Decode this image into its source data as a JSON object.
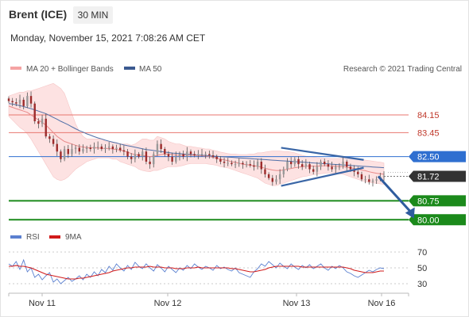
{
  "header": {
    "title": "Brent (ICE)",
    "timeframe": "30 MIN",
    "datetime": "Monday, November 15, 2021 7:08:26 AM CET"
  },
  "legend": {
    "ma20_label": "MA 20 + Bollinger Bands",
    "ma50_label": "MA 50",
    "credit": "Research © 2021 Trading Central",
    "rsi_label": "RSI",
    "rsi9ma_label": "9MA"
  },
  "colors": {
    "up_candle": "#999999",
    "down_candle": "#9c2b2b",
    "ma20": "#e88a8a",
    "bollinger_fill": "#fde2e2",
    "ma50": "#4f6fa8",
    "resistance": "#e8766f",
    "pivot": "#2f6fd0",
    "support": "#1b8a1b",
    "current": "#333333",
    "trendline": "#3a66a6",
    "rsi": "#5b80d0",
    "rsi9ma": "#d11b1b"
  },
  "chart_data": [
    {
      "type": "candlestick",
      "title": "",
      "x_labels": [
        "Nov 11",
        "Nov 12",
        "Nov 13",
        "Nov 16"
      ],
      "ylim": [
        79.6,
        85.5
      ],
      "levels": [
        {
          "value": 84.15,
          "label": "84.15",
          "kind": "resistance"
        },
        {
          "value": 83.45,
          "label": "83.45",
          "kind": "resistance"
        },
        {
          "value": 82.5,
          "label": "82.50",
          "kind": "pivot"
        },
        {
          "value": 81.72,
          "label": "81.72",
          "kind": "current"
        },
        {
          "value": 80.75,
          "label": "80.75",
          "kind": "support"
        },
        {
          "value": 80.0,
          "label": "80.00",
          "kind": "support"
        }
      ],
      "triangle_pattern": {
        "upper": [
          [
            0.726,
            82.85
          ],
          [
            0.946,
            82.37
          ]
        ],
        "lower": [
          [
            0.726,
            81.34
          ],
          [
            0.946,
            82.06
          ]
        ]
      },
      "forecast_arrow": {
        "from": [
          0.985,
          81.72
        ],
        "to": [
          1.08,
          80.05
        ]
      },
      "price_series": [
        84.7,
        84.65,
        84.6,
        84.75,
        84.5,
        84.9,
        84.6,
        83.9,
        83.8,
        84.0,
        83.3,
        83.2,
        83.0,
        82.7,
        82.4,
        82.8,
        82.6,
        82.8,
        82.85,
        82.7,
        82.8,
        82.85,
        82.8,
        82.9,
        82.9,
        82.8,
        82.85,
        82.9,
        82.8,
        82.85,
        82.75,
        82.7,
        82.5,
        82.4,
        82.6,
        82.5,
        82.7,
        82.3,
        82.2,
        82.6,
        83.0,
        82.8,
        82.6,
        82.5,
        82.3,
        82.5,
        82.6,
        82.5,
        82.7,
        82.6,
        82.55,
        82.6,
        82.6,
        82.6,
        82.55,
        82.5,
        82.4,
        82.3,
        82.25,
        82.25,
        82.2,
        82.2,
        82.25,
        82.2,
        82.2,
        82.15,
        82.1,
        82.3,
        82.0,
        81.8,
        81.65,
        81.5,
        81.6,
        81.8,
        82.0,
        82.3,
        82.2,
        82.4,
        82.2,
        82.1,
        82.2,
        82.0,
        81.9,
        82.1,
        82.3,
        82.2,
        82.1,
        82.0,
        82.1,
        82.1,
        82.3,
        82.1,
        82.0,
        81.9,
        81.8,
        81.6,
        81.6,
        81.5,
        81.55,
        81.6,
        81.7,
        81.72
      ],
      "ma20": [
        84.5,
        84.45,
        84.4,
        84.35,
        84.3,
        84.25,
        84.15,
        84.05,
        83.95,
        83.85,
        83.75,
        83.6,
        83.45,
        83.3,
        83.2,
        83.1,
        83.05,
        83.0,
        82.95,
        82.9,
        82.88,
        82.85,
        82.85,
        82.85,
        82.84,
        82.83,
        82.82,
        82.82,
        82.8,
        82.78,
        82.76,
        82.72,
        82.68,
        82.62,
        82.58,
        82.56,
        82.55,
        82.52,
        82.5,
        82.52,
        82.55,
        82.58,
        82.6,
        82.6,
        82.58,
        82.56,
        82.55,
        82.55,
        82.56,
        82.56,
        82.55,
        82.54,
        82.53,
        82.52,
        82.5,
        82.47,
        82.44,
        82.4,
        82.37,
        82.34,
        82.3,
        82.27,
        82.24,
        82.2,
        82.18,
        82.16,
        82.14,
        82.12,
        82.08,
        82.04,
        82.0,
        81.97,
        81.95,
        81.95,
        81.97,
        82.0,
        82.03,
        82.06,
        82.08,
        82.1,
        82.12,
        82.13,
        82.12,
        82.12,
        82.13,
        82.14,
        82.14,
        82.13,
        82.12,
        82.11,
        82.1,
        82.08,
        82.06,
        82.03,
        82.0,
        81.97,
        81.94,
        81.9,
        81.87,
        81.84,
        81.82,
        81.8
      ],
      "bb_upper": [
        84.9,
        84.95,
        85.0,
        85.05,
        85.05,
        85.1,
        85.1,
        85.15,
        85.2,
        85.25,
        85.3,
        85.35,
        85.4,
        85.3,
        85.2,
        85.0,
        84.6,
        84.2,
        83.8,
        83.5,
        83.3,
        83.2,
        83.2,
        83.2,
        83.2,
        83.2,
        83.1,
        83.1,
        83.05,
        83.05,
        83.0,
        83.0,
        83.0,
        82.95,
        83.0,
        83.1,
        83.2,
        83.2,
        83.15,
        83.15,
        83.3,
        83.25,
        83.2,
        83.1,
        83.05,
        83.0,
        83.0,
        82.95,
        82.9,
        82.9,
        82.88,
        82.85,
        82.83,
        82.8,
        82.8,
        82.75,
        82.72,
        82.68,
        82.65,
        82.62,
        82.6,
        82.6,
        82.58,
        82.58,
        82.58,
        82.6,
        82.6,
        82.65,
        82.65,
        82.68,
        82.7,
        82.72,
        82.72,
        82.72,
        82.7,
        82.7,
        82.68,
        82.65,
        82.6,
        82.55,
        82.52,
        82.5,
        82.48,
        82.46,
        82.45,
        82.44,
        82.43,
        82.42,
        82.42,
        82.42,
        82.45,
        82.45,
        82.45,
        82.43,
        82.4,
        82.38,
        82.36,
        82.34,
        82.32,
        82.3,
        82.28,
        82.25
      ],
      "bb_lower": [
        84.1,
        83.95,
        83.8,
        83.65,
        83.55,
        83.4,
        83.2,
        82.95,
        82.7,
        82.45,
        82.2,
        81.95,
        81.7,
        81.6,
        81.55,
        81.6,
        81.7,
        81.85,
        82.0,
        82.1,
        82.2,
        82.3,
        82.35,
        82.4,
        82.45,
        82.45,
        82.45,
        82.45,
        82.4,
        82.4,
        82.3,
        82.25,
        82.2,
        82.15,
        82.1,
        82.0,
        81.95,
        81.92,
        81.9,
        81.95,
        81.95,
        82.0,
        82.05,
        82.1,
        82.1,
        82.1,
        82.12,
        82.15,
        82.2,
        82.22,
        82.22,
        82.22,
        82.22,
        82.22,
        82.2,
        82.18,
        82.15,
        82.1,
        82.08,
        82.05,
        82.0,
        81.95,
        81.9,
        81.85,
        81.8,
        81.75,
        81.7,
        81.65,
        81.55,
        81.45,
        81.4,
        81.35,
        81.35,
        81.4,
        81.45,
        81.5,
        81.55,
        81.6,
        81.65,
        81.7,
        81.72,
        81.75,
        81.78,
        81.8,
        81.82,
        81.84,
        81.85,
        81.85,
        81.84,
        81.82,
        81.8,
        81.75,
        81.7,
        81.65,
        81.6,
        81.55,
        81.5,
        81.48,
        81.46,
        81.44,
        81.42,
        81.4
      ],
      "ma50": [
        84.6,
        84.58,
        84.55,
        84.52,
        84.48,
        84.44,
        84.4,
        84.35,
        84.3,
        84.25,
        84.2,
        84.13,
        84.05,
        83.98,
        83.9,
        83.83,
        83.76,
        83.68,
        83.6,
        83.53,
        83.47,
        83.4,
        83.35,
        83.29,
        83.24,
        83.2,
        83.15,
        83.11,
        83.07,
        83.04,
        83.0,
        82.96,
        82.93,
        82.9,
        82.87,
        82.84,
        82.81,
        82.78,
        82.76,
        82.74,
        82.72,
        82.7,
        82.68,
        82.66,
        82.64,
        82.63,
        82.62,
        82.6,
        82.59,
        82.58,
        82.57,
        82.56,
        82.55,
        82.54,
        82.53,
        82.52,
        82.51,
        82.5,
        82.49,
        82.48,
        82.47,
        82.46,
        82.45,
        82.44,
        82.43,
        82.42,
        82.41,
        82.4,
        82.39,
        82.38,
        82.37,
        82.36,
        82.35,
        82.34,
        82.33,
        82.32,
        82.31,
        82.3,
        82.29,
        82.28,
        82.27,
        82.26,
        82.25,
        82.24,
        82.23,
        82.22,
        82.21,
        82.2,
        82.19,
        82.18,
        82.17,
        82.16,
        82.15,
        82.14,
        82.13,
        82.12,
        82.11,
        82.1,
        82.09,
        82.08,
        82.07,
        82.06
      ]
    },
    {
      "type": "line",
      "title": "",
      "ylim": [
        20,
        80
      ],
      "y_ticks": [
        70,
        50,
        30
      ],
      "series": [
        {
          "name": "RSI",
          "values": [
            55,
            52,
            58,
            48,
            60,
            45,
            50,
            38,
            42,
            35,
            40,
            44,
            32,
            36,
            30,
            34,
            38,
            33,
            36,
            40,
            35,
            42,
            38,
            45,
            40,
            48,
            44,
            52,
            47,
            55,
            50,
            46,
            53,
            48,
            57,
            52,
            49,
            55,
            50,
            46,
            54,
            50,
            45,
            52,
            48,
            44,
            50,
            47,
            53,
            49,
            55,
            51,
            48,
            52,
            50,
            47,
            53,
            49,
            51,
            48,
            46,
            50,
            44,
            42,
            40,
            38,
            45,
            49,
            55,
            52,
            58,
            54,
            50,
            56,
            52,
            49,
            55,
            51,
            48,
            53,
            50,
            54,
            49,
            52,
            55,
            50,
            47,
            52,
            49,
            53,
            50,
            45,
            43,
            40,
            38,
            41,
            44,
            47,
            45,
            48,
            50,
            49
          ]
        },
        {
          "name": "9MA",
          "values": [
            52,
            52,
            53,
            52,
            52,
            51,
            50,
            48,
            46,
            44,
            42,
            41,
            40,
            39,
            38,
            37,
            36,
            36,
            36,
            37,
            37,
            38,
            39,
            40,
            41,
            42,
            43,
            44,
            46,
            47,
            48,
            49,
            50,
            50,
            51,
            51,
            51,
            51,
            52,
            51,
            51,
            51,
            50,
            50,
            50,
            49,
            49,
            49,
            50,
            50,
            50,
            51,
            50,
            50,
            50,
            50,
            50,
            50,
            50,
            50,
            49,
            49,
            48,
            47,
            46,
            45,
            45,
            46,
            47,
            48,
            50,
            51,
            52,
            52,
            52,
            52,
            52,
            52,
            52,
            51,
            51,
            51,
            51,
            51,
            51,
            51,
            51,
            51,
            51,
            51,
            51,
            50,
            49,
            47,
            46,
            45,
            44,
            44,
            44,
            45,
            46,
            46
          ]
        }
      ]
    }
  ]
}
